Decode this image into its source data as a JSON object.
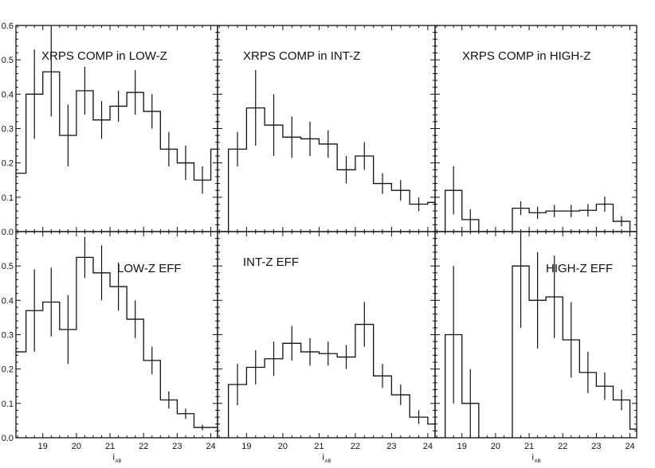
{
  "figure": {
    "x_axis_label": "i",
    "x_axis_label_subscript": "AB"
  },
  "chart_data": [
    {
      "type": "line",
      "title": "XRPS COMP in LOW-Z",
      "row": 0,
      "col": 0,
      "xlim": [
        18.2,
        24.2
      ],
      "ylim": [
        0.0,
        0.6
      ],
      "yticks": [
        "0.0",
        "0.1",
        "0.2",
        "0.3",
        "0.4",
        "0.5",
        "0.6"
      ],
      "xticks": [],
      "x": [
        18.25,
        18.75,
        19.25,
        19.75,
        20.25,
        20.75,
        21.25,
        21.75,
        22.25,
        22.75,
        23.25,
        23.75,
        24.25
      ],
      "y": [
        0.17,
        0.4,
        0.465,
        0.28,
        0.41,
        0.325,
        0.365,
        0.405,
        0.35,
        0.24,
        0.2,
        0.15,
        0.24
      ],
      "err": [
        0,
        0.13,
        0.13,
        0.09,
        0.07,
        0.055,
        0.045,
        0.065,
        0.05,
        0.05,
        0.05,
        0.04,
        0.05
      ]
    },
    {
      "type": "line",
      "title": "XRPS COMP in INT-Z",
      "row": 0,
      "col": 1,
      "xlim": [
        18.2,
        24.2
      ],
      "ylim": [
        0.0,
        0.6
      ],
      "yticks": [],
      "xticks": [],
      "x": [
        18.25,
        18.75,
        19.25,
        19.75,
        20.25,
        20.75,
        21.25,
        21.75,
        22.25,
        22.75,
        23.25,
        23.75,
        24.25
      ],
      "y": [
        0.0,
        0.24,
        0.36,
        0.31,
        0.275,
        0.27,
        0.255,
        0.18,
        0.22,
        0.14,
        0.12,
        0.08,
        0.085
      ],
      "err": [
        0,
        0.05,
        0.11,
        0.09,
        0.06,
        0.05,
        0.04,
        0.04,
        0.04,
        0.03,
        0.03,
        0.02,
        0.02
      ]
    },
    {
      "type": "line",
      "title": "XRPS COMP in HIGH-Z",
      "row": 0,
      "col": 2,
      "xlim": [
        18.2,
        24.2
      ],
      "ylim": [
        0.0,
        0.6
      ],
      "yticks": [],
      "xticks": [],
      "x": [
        18.25,
        18.75,
        19.25,
        19.75,
        20.25,
        20.75,
        21.25,
        21.75,
        22.25,
        22.75,
        23.25,
        23.75,
        24.25
      ],
      "y": [
        0.0,
        0.12,
        0.035,
        0.0,
        0.0,
        0.068,
        0.055,
        0.06,
        0.06,
        0.062,
        0.08,
        0.03,
        0.0
      ],
      "err": [
        0,
        0.07,
        0.03,
        0,
        0,
        0.02,
        0.018,
        0.018,
        0.018,
        0.018,
        0.022,
        0.015,
        0
      ]
    },
    {
      "type": "line",
      "title": "LOW-Z EFF",
      "row": 1,
      "col": 0,
      "xlim": [
        18.2,
        24.2
      ],
      "ylim": [
        0.0,
        0.6
      ],
      "yticks": [
        "0.0",
        "0.1",
        "0.2",
        "0.3",
        "0.4",
        "0.5"
      ],
      "xticks": [
        "19",
        "20",
        "21",
        "22",
        "23",
        "24"
      ],
      "x": [
        18.25,
        18.75,
        19.25,
        19.75,
        20.25,
        20.75,
        21.25,
        21.75,
        22.25,
        22.75,
        23.25,
        23.75,
        24.25
      ],
      "y": [
        0.25,
        0.37,
        0.395,
        0.315,
        0.525,
        0.48,
        0.44,
        0.345,
        0.225,
        0.11,
        0.07,
        0.03,
        0.03
      ],
      "err": [
        0,
        0.12,
        0.1,
        0.1,
        0.06,
        0.08,
        0.07,
        0.055,
        0.04,
        0.025,
        0.015,
        0.008,
        0
      ]
    },
    {
      "type": "line",
      "title": "INT-Z EFF",
      "row": 1,
      "col": 1,
      "xlim": [
        18.2,
        24.2
      ],
      "ylim": [
        0.0,
        0.6
      ],
      "yticks": [],
      "xticks": [
        "19",
        "20",
        "21",
        "22",
        "23",
        "24"
      ],
      "x": [
        18.25,
        18.75,
        19.25,
        19.75,
        20.25,
        20.75,
        21.25,
        21.75,
        22.25,
        22.75,
        23.25,
        23.75,
        24.25
      ],
      "y": [
        0.0,
        0.155,
        0.205,
        0.23,
        0.275,
        0.25,
        0.245,
        0.235,
        0.33,
        0.18,
        0.125,
        0.06,
        0.04
      ],
      "err": [
        0,
        0.06,
        0.05,
        0.05,
        0.05,
        0.04,
        0.035,
        0.035,
        0.065,
        0.035,
        0.03,
        0.02,
        0.01
      ]
    },
    {
      "type": "line",
      "title": "HIGH-Z EFF",
      "row": 1,
      "col": 2,
      "xlim": [
        18.2,
        24.2
      ],
      "ylim": [
        0.0,
        0.6
      ],
      "yticks": [],
      "xticks": [
        "19",
        "20",
        "21",
        "22",
        "23",
        "24"
      ],
      "x": [
        18.25,
        18.75,
        19.25,
        19.75,
        20.25,
        20.75,
        21.25,
        21.75,
        22.25,
        22.75,
        23.25,
        23.75,
        24.25
      ],
      "y": [
        0.0,
        0.3,
        0.1,
        0.0,
        0.0,
        0.5,
        0.4,
        0.41,
        0.285,
        0.19,
        0.15,
        0.11,
        0.025
      ],
      "err": [
        0,
        0.2,
        0.1,
        0,
        0,
        0.18,
        0.14,
        0.12,
        0.11,
        0.06,
        0.04,
        0.03,
        0.015
      ]
    }
  ]
}
